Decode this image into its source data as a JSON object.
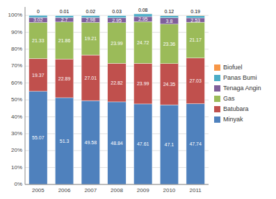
{
  "chart_data": {
    "type": "bar",
    "stacked": true,
    "grid": true,
    "legend": "right",
    "categories": [
      "2005",
      "2006",
      "2007",
      "2008",
      "2009",
      "2010",
      "2011"
    ],
    "series": [
      {
        "name": "Minyak",
        "color": "#4F81BD",
        "data_labels": true,
        "values": [
          55.07,
          51.3,
          49.58,
          48.84,
          47.61,
          47.1,
          47.74
        ]
      },
      {
        "name": "Batubara",
        "color": "#C0504D",
        "data_labels": true,
        "values": [
          19.37,
          22.89,
          27.01,
          22.82,
          23.99,
          24.35,
          27.03
        ]
      },
      {
        "name": "Gas",
        "color": "#9BBB59",
        "data_labels": true,
        "values": [
          21.33,
          21.86,
          19.21,
          23.99,
          24.72,
          23.36,
          21.17
        ]
      },
      {
        "name": "Tenaga Angin",
        "color": "#7F5F9A",
        "data_labels": true,
        "values": [
          3.02,
          2.7,
          2.98,
          2.95,
          2.95,
          3.8,
          2.53
        ]
      },
      {
        "name": "Panas Bumi",
        "color": "#4BACC6",
        "data_labels": false,
        "values": [
          1.21,
          1.24,
          1.2,
          1.37,
          1.65,
          1.27,
          1.34
        ]
      },
      {
        "name": "Biofuel",
        "color": "#F79646",
        "data_labels": true,
        "values": [
          0.0,
          0.01,
          0.02,
          0.03,
          0.08,
          0.12,
          0.19
        ]
      }
    ],
    "ylim": [
      0,
      105
    ],
    "yticks": [
      {
        "value": 0,
        "label": "0%"
      },
      {
        "value": 10,
        "label": "10%"
      },
      {
        "value": 20,
        "label": "20%"
      },
      {
        "value": 30,
        "label": "30%"
      },
      {
        "value": 40,
        "label": "40%"
      },
      {
        "value": 50,
        "label": "50%"
      },
      {
        "value": 60,
        "label": "60%"
      },
      {
        "value": 70,
        "label": "70%"
      },
      {
        "value": 80,
        "label": "80%"
      },
      {
        "value": 90,
        "label": "90%"
      },
      {
        "value": 100,
        "label": "100%"
      }
    ]
  }
}
